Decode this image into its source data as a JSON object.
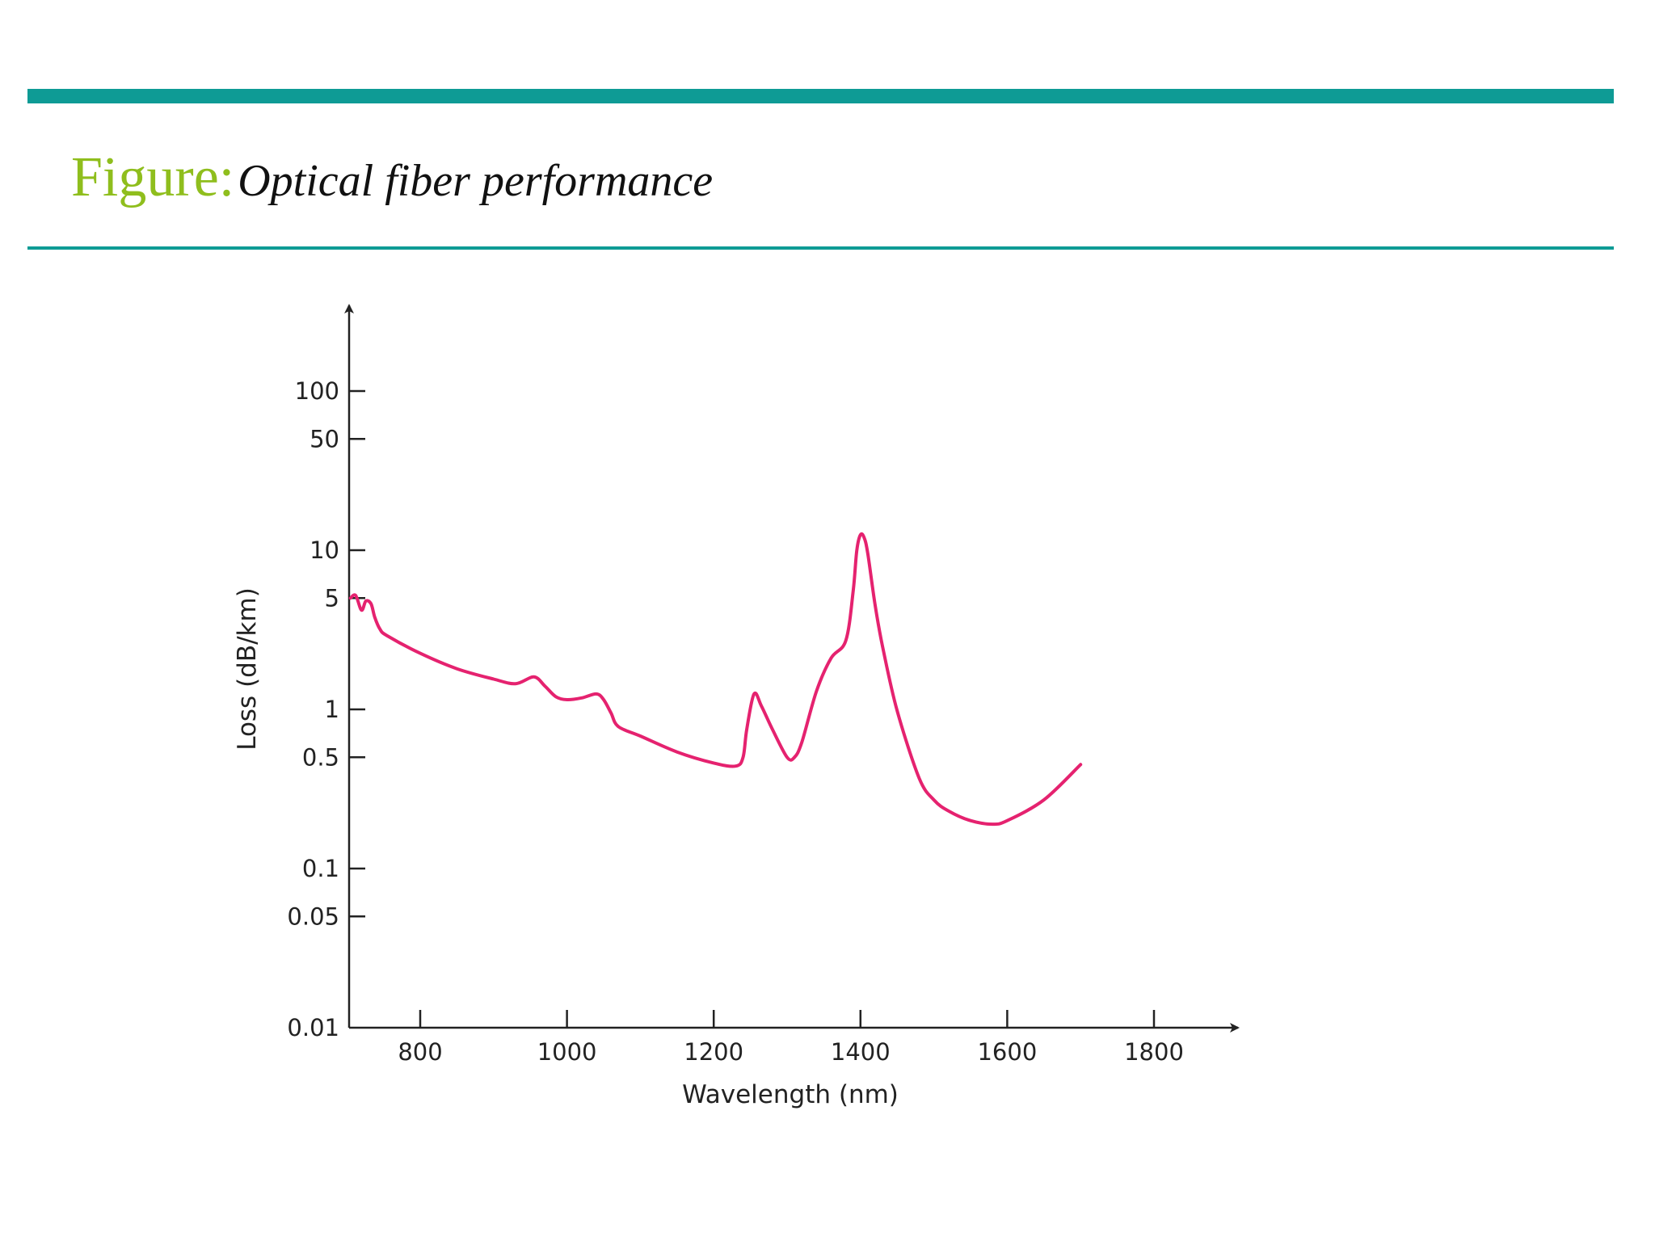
{
  "colors": {
    "accent_bar": "#0e9b95",
    "title_label": "#8fbe1d",
    "curve": "#e5226f",
    "axis": "#222222"
  },
  "header": {
    "label": "Figure:",
    "title": "Optical fiber performance"
  },
  "chart_data": {
    "type": "line",
    "title": "",
    "xlabel": "Wavelength (nm)",
    "ylabel": "Loss (dB/km)",
    "y_scale": "log",
    "xlim": [
      705,
      1860
    ],
    "ylim": [
      0.01,
      500
    ],
    "x_ticks": [
      800,
      1000,
      1200,
      1400,
      1600,
      1800
    ],
    "x_tick_labels": [
      "800",
      "1000",
      "1200",
      "1400",
      "1600",
      "1800"
    ],
    "y_ticks": [
      0.01,
      0.05,
      0.1,
      0.5,
      1,
      5,
      10,
      50,
      100
    ],
    "y_tick_labels": [
      "0.01",
      "0.05",
      "0.1",
      "0.5",
      "1",
      "5",
      "10",
      "50",
      "100"
    ],
    "grid": false,
    "series": [
      {
        "x": [
          705,
          712,
          720,
          726,
          733,
          738,
          745,
          755,
          800,
          850,
          900,
          930,
          955,
          970,
          985,
          1000,
          1020,
          1040,
          1050,
          1060,
          1070,
          1100,
          1150,
          1200,
          1230,
          1240,
          1245,
          1255,
          1265,
          1280,
          1300,
          1310,
          1320,
          1340,
          1360,
          1380,
          1390,
          1395,
          1400,
          1405,
          1410,
          1420,
          1430,
          1450,
          1480,
          1500,
          1520,
          1550,
          1580,
          1600,
          1650,
          1700
        ],
        "y": [
          5,
          5.2,
          4.2,
          4.8,
          4.6,
          3.8,
          3.2,
          2.9,
          2.25,
          1.8,
          1.55,
          1.45,
          1.6,
          1.4,
          1.2,
          1.15,
          1.18,
          1.25,
          1.15,
          0.95,
          0.78,
          0.68,
          0.54,
          0.46,
          0.44,
          0.5,
          0.75,
          1.25,
          1.05,
          0.75,
          0.5,
          0.5,
          0.62,
          1.3,
          2.1,
          2.7,
          5.5,
          10,
          12.5,
          12,
          9.5,
          4.5,
          2.5,
          0.98,
          0.37,
          0.27,
          0.23,
          0.2,
          0.19,
          0.2,
          0.27,
          0.45
        ]
      }
    ]
  }
}
